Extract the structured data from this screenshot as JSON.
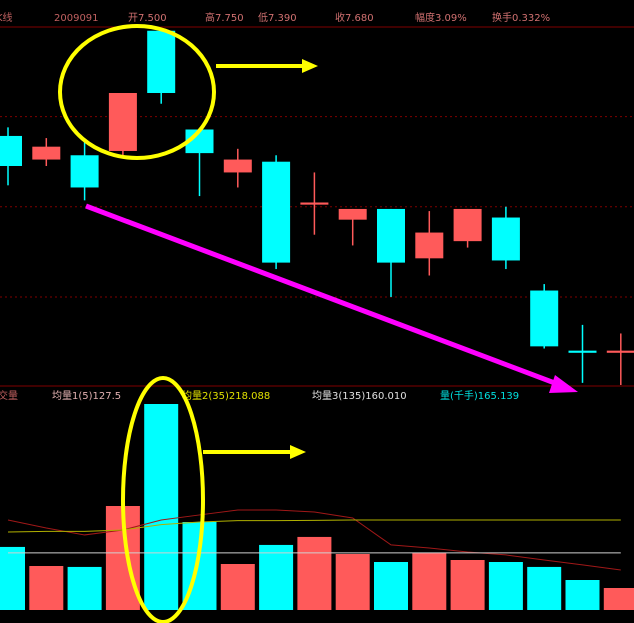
{
  "chart_data": {
    "type": "candlestick",
    "header_labels": [
      "日K线",
      "2009091",
      "开7.500",
      "高7.750",
      "低7.390",
      "收7.680",
      "幅度3.09%",
      "换手0.332%"
    ],
    "volume_labels": [
      "成交量",
      "均量1(5)127.5",
      "均量2(35)218.088",
      "均量3(135)160.010",
      "量(千手)165.139"
    ],
    "open": [
      8.06,
      7.95,
      7.97,
      7.99,
      8.55,
      8.09,
      7.89,
      7.94,
      7.74,
      7.67,
      7.72,
      7.49,
      7.57,
      7.68,
      7.34,
      7.06,
      7.05
    ],
    "close": [
      7.92,
      8.01,
      7.82,
      8.26,
      8.26,
      7.98,
      7.95,
      7.47,
      7.75,
      7.72,
      7.47,
      7.61,
      7.72,
      7.48,
      7.08,
      7.05,
      7.06
    ],
    "high": [
      8.1,
      8.05,
      8.04,
      8.26,
      8.55,
      8.09,
      8.0,
      7.97,
      7.89,
      7.72,
      7.72,
      7.71,
      7.72,
      7.73,
      7.37,
      7.18,
      7.14
    ],
    "low": [
      7.83,
      7.92,
      7.76,
      7.97,
      8.21,
      7.78,
      7.82,
      7.44,
      7.6,
      7.55,
      7.31,
      7.41,
      7.54,
      7.44,
      7.07,
      6.91,
      6.9
    ],
    "up_color": "#ff5a5a",
    "down_color": "#00ffff",
    "ylim": [
      6.9,
      8.6
    ],
    "grid_levels": [
      8.15,
      7.73,
      7.31
    ],
    "volume": [
      473,
      330,
      323,
      780,
      1545,
      660,
      345,
      488,
      548,
      420,
      360,
      428,
      375,
      360,
      323,
      225,
      165
    ],
    "vlim": [
      0,
      1590
    ],
    "ma_series": [
      {
        "color": "#a01818",
        "values": [
          675,
          615,
          563,
          600,
          675,
          713,
          750,
          750,
          735,
          690,
          488,
          465,
          435,
          413,
          375,
          338,
          300
        ]
      },
      {
        "color": "#b0b000",
        "values": [
          585,
          590,
          590,
          600,
          640,
          660,
          670,
          670,
          672,
          675,
          675,
          675,
          675,
          675,
          675,
          675,
          675
        ]
      },
      {
        "color": "#d0d0d0",
        "values": [
          428,
          428,
          428,
          428,
          428,
          428,
          428,
          428,
          428,
          428,
          428,
          428,
          428,
          428,
          428,
          428,
          428
        ]
      }
    ]
  }
}
